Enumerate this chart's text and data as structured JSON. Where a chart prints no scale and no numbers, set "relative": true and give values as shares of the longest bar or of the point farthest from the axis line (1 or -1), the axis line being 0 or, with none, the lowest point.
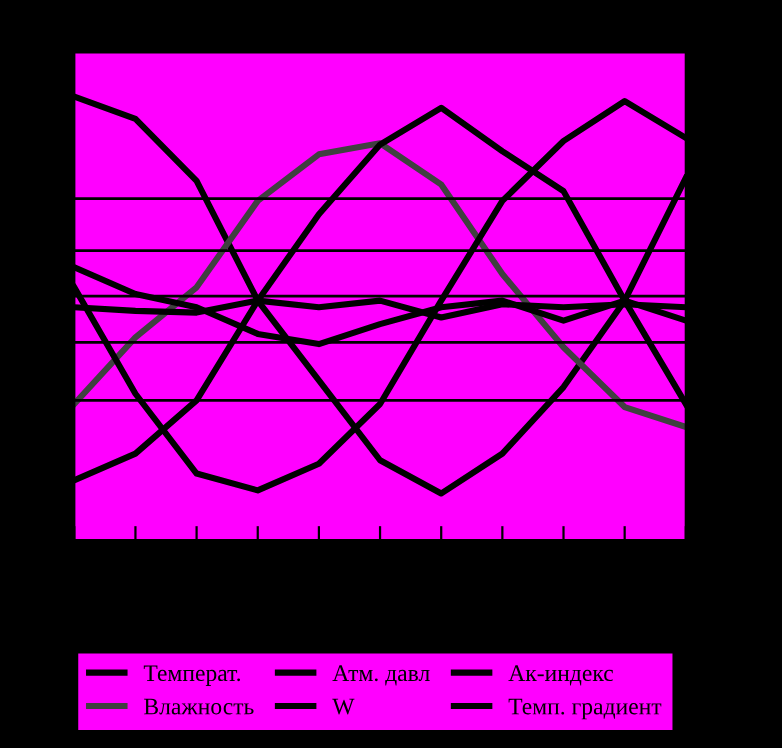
{
  "chart_data": {
    "type": "line",
    "relative": true,
    "categories": [
      null,
      null,
      null,
      null,
      null,
      null,
      null,
      null,
      null,
      null,
      null
    ],
    "series": [
      {
        "name": "Температ.",
        "color": "#000000",
        "values": [
          1,
          0.95,
          0.81,
          0.54,
          0.36,
          0.18,
          0.105,
          0.195,
          0.345,
          0.54,
          0.817
        ]
      },
      {
        "name": "Влажность",
        "color": "#404040",
        "values": [
          0.307,
          0.457,
          0.57,
          0.765,
          0.87,
          0.895,
          0.802,
          0.6,
          0.435,
          0.3,
          0.255
        ]
      },
      {
        "name": "Атм. давл",
        "color": "#000000",
        "values": [
          0.135,
          0.195,
          0.315,
          0.54,
          0.735,
          0.892,
          0.975,
          0.877,
          0.787,
          0.54,
          0.307
        ]
      },
      {
        "name": "W",
        "color": "#000000",
        "values": [
          0.525,
          0.517,
          0.513,
          0.54,
          0.525,
          0.54,
          0.502,
          0.532,
          0.525,
          0.532,
          0.525
        ]
      },
      {
        "name": "Ак-индекс",
        "color": "#000000",
        "values": [
          0.615,
          0.555,
          0.525,
          0.465,
          0.442,
          0.487,
          0.525,
          0.54,
          0.495,
          0.54,
          0.495
        ]
      },
      {
        "name": "Темп. градиент",
        "color": "#000000",
        "values": [
          0.57,
          0.33,
          0.15,
          0.112,
          0.172,
          0.307,
          0.54,
          0.765,
          0.9,
          0.99,
          0.907
        ]
      }
    ],
    "ref_lines": [
      {
        "axis": "y",
        "value": 0.77,
        "color": "#000000"
      },
      {
        "axis": "y",
        "value": 0.653,
        "color": "#000000"
      },
      {
        "axis": "y",
        "value": 0.55,
        "color": "#000000"
      },
      {
        "axis": "y",
        "value": 0.446,
        "color": "#000000"
      },
      {
        "axis": "y",
        "value": 0.315,
        "color": "#000000"
      }
    ],
    "grid": false,
    "legend": "bottom"
  }
}
